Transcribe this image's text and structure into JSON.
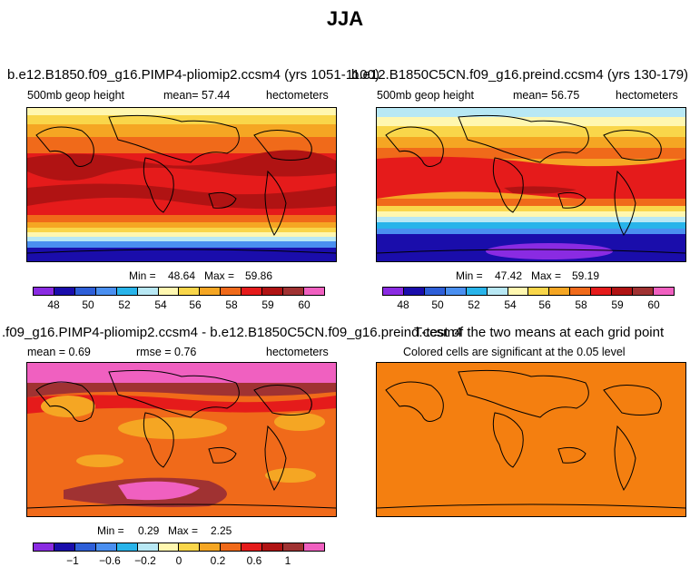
{
  "page_title": "JJA",
  "colors": {
    "scale": [
      "#8a2be2",
      "#1a0dab",
      "#2e5fd8",
      "#4a8ff0",
      "#28b4ea",
      "#b8e8f4",
      "#fff7b0",
      "#f9d64a",
      "#f5a623",
      "#f06a1a",
      "#e51b1b",
      "#b01313",
      "#a03232",
      "#f060c0"
    ],
    "ocean_orange": "#f47f10"
  },
  "panels": [
    {
      "title": "b.e12.B1850.f09_g16.PIMP4-pliomip2.ccsm4 (yrs 1051-1100)",
      "left": "500mb  geop height",
      "mid": "mean=   57.44",
      "right": "hectometers",
      "min_label": "Min =",
      "min_value": "48.64",
      "max_label": "Max =",
      "max_value": "59.86",
      "ticks": [
        "48",
        "50",
        "52",
        "54",
        "56",
        "58",
        "59",
        "60"
      ]
    },
    {
      "title": "b.e12.B1850C5CN.f09_g16.preind.ccsm4 (yrs 130-179)",
      "left": "500mb  geop height",
      "mid": "mean=   56.75",
      "right": "hectometers",
      "min_label": "Min =",
      "min_value": "47.42",
      "max_label": "Max =",
      "max_value": "59.19",
      "ticks": [
        "48",
        "50",
        "52",
        "54",
        "56",
        "58",
        "59",
        "60"
      ]
    },
    {
      "title": ".f09_g16.PIMP4-pliomip2.ccsm4 - b.e12.B1850C5CN.f09_g16.preind.ccsm4",
      "left": "mean =    0.69",
      "mid": "rmse =    0.76",
      "right": "hectometers",
      "min_label": "Min =",
      "min_value": "0.29",
      "max_label": "Max =",
      "max_value": "2.25",
      "ticks": [
        "−1",
        "−0.6",
        "−0.2",
        "0",
        "0.2",
        "0.6",
        "1"
      ]
    },
    {
      "title": "T-test of the two means at each grid point",
      "subtitle": "Colored cells are significant at the 0.05 level"
    }
  ]
}
